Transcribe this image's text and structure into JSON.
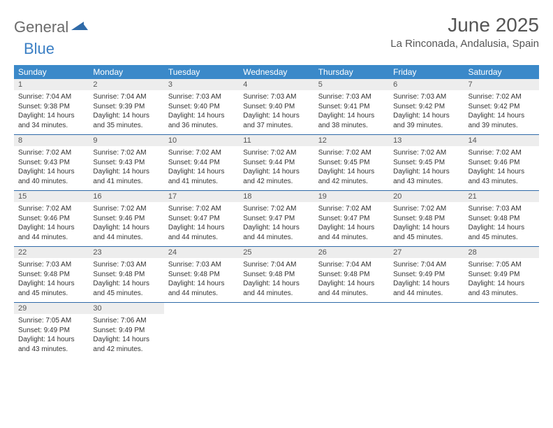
{
  "brand": {
    "part1": "General",
    "part2": "Blue"
  },
  "title": "June 2025",
  "location": "La Rinconada, Andalusia, Spain",
  "colors": {
    "header_bg": "#3b89c9",
    "header_text": "#ffffff",
    "daynum_bg": "#ededed",
    "daynum_text": "#555555",
    "body_text": "#333333",
    "rule": "#2f6aa8",
    "title_text": "#555555"
  },
  "day_headers": [
    "Sunday",
    "Monday",
    "Tuesday",
    "Wednesday",
    "Thursday",
    "Friday",
    "Saturday"
  ],
  "weeks": [
    [
      {
        "n": "1",
        "sr": "7:04 AM",
        "ss": "9:38 PM",
        "dl": "14 hours and 34 minutes."
      },
      {
        "n": "2",
        "sr": "7:04 AM",
        "ss": "9:39 PM",
        "dl": "14 hours and 35 minutes."
      },
      {
        "n": "3",
        "sr": "7:03 AM",
        "ss": "9:40 PM",
        "dl": "14 hours and 36 minutes."
      },
      {
        "n": "4",
        "sr": "7:03 AM",
        "ss": "9:40 PM",
        "dl": "14 hours and 37 minutes."
      },
      {
        "n": "5",
        "sr": "7:03 AM",
        "ss": "9:41 PM",
        "dl": "14 hours and 38 minutes."
      },
      {
        "n": "6",
        "sr": "7:03 AM",
        "ss": "9:42 PM",
        "dl": "14 hours and 39 minutes."
      },
      {
        "n": "7",
        "sr": "7:02 AM",
        "ss": "9:42 PM",
        "dl": "14 hours and 39 minutes."
      }
    ],
    [
      {
        "n": "8",
        "sr": "7:02 AM",
        "ss": "9:43 PM",
        "dl": "14 hours and 40 minutes."
      },
      {
        "n": "9",
        "sr": "7:02 AM",
        "ss": "9:43 PM",
        "dl": "14 hours and 41 minutes."
      },
      {
        "n": "10",
        "sr": "7:02 AM",
        "ss": "9:44 PM",
        "dl": "14 hours and 41 minutes."
      },
      {
        "n": "11",
        "sr": "7:02 AM",
        "ss": "9:44 PM",
        "dl": "14 hours and 42 minutes."
      },
      {
        "n": "12",
        "sr": "7:02 AM",
        "ss": "9:45 PM",
        "dl": "14 hours and 42 minutes."
      },
      {
        "n": "13",
        "sr": "7:02 AM",
        "ss": "9:45 PM",
        "dl": "14 hours and 43 minutes."
      },
      {
        "n": "14",
        "sr": "7:02 AM",
        "ss": "9:46 PM",
        "dl": "14 hours and 43 minutes."
      }
    ],
    [
      {
        "n": "15",
        "sr": "7:02 AM",
        "ss": "9:46 PM",
        "dl": "14 hours and 44 minutes."
      },
      {
        "n": "16",
        "sr": "7:02 AM",
        "ss": "9:46 PM",
        "dl": "14 hours and 44 minutes."
      },
      {
        "n": "17",
        "sr": "7:02 AM",
        "ss": "9:47 PM",
        "dl": "14 hours and 44 minutes."
      },
      {
        "n": "18",
        "sr": "7:02 AM",
        "ss": "9:47 PM",
        "dl": "14 hours and 44 minutes."
      },
      {
        "n": "19",
        "sr": "7:02 AM",
        "ss": "9:47 PM",
        "dl": "14 hours and 44 minutes."
      },
      {
        "n": "20",
        "sr": "7:02 AM",
        "ss": "9:48 PM",
        "dl": "14 hours and 45 minutes."
      },
      {
        "n": "21",
        "sr": "7:03 AM",
        "ss": "9:48 PM",
        "dl": "14 hours and 45 minutes."
      }
    ],
    [
      {
        "n": "22",
        "sr": "7:03 AM",
        "ss": "9:48 PM",
        "dl": "14 hours and 45 minutes."
      },
      {
        "n": "23",
        "sr": "7:03 AM",
        "ss": "9:48 PM",
        "dl": "14 hours and 45 minutes."
      },
      {
        "n": "24",
        "sr": "7:03 AM",
        "ss": "9:48 PM",
        "dl": "14 hours and 44 minutes."
      },
      {
        "n": "25",
        "sr": "7:04 AM",
        "ss": "9:48 PM",
        "dl": "14 hours and 44 minutes."
      },
      {
        "n": "26",
        "sr": "7:04 AM",
        "ss": "9:48 PM",
        "dl": "14 hours and 44 minutes."
      },
      {
        "n": "27",
        "sr": "7:04 AM",
        "ss": "9:49 PM",
        "dl": "14 hours and 44 minutes."
      },
      {
        "n": "28",
        "sr": "7:05 AM",
        "ss": "9:49 PM",
        "dl": "14 hours and 43 minutes."
      }
    ],
    [
      {
        "n": "29",
        "sr": "7:05 AM",
        "ss": "9:49 PM",
        "dl": "14 hours and 43 minutes."
      },
      {
        "n": "30",
        "sr": "7:06 AM",
        "ss": "9:49 PM",
        "dl": "14 hours and 42 minutes."
      },
      null,
      null,
      null,
      null,
      null
    ]
  ],
  "labels": {
    "sunrise": "Sunrise:",
    "sunset": "Sunset:",
    "daylight": "Daylight:"
  }
}
